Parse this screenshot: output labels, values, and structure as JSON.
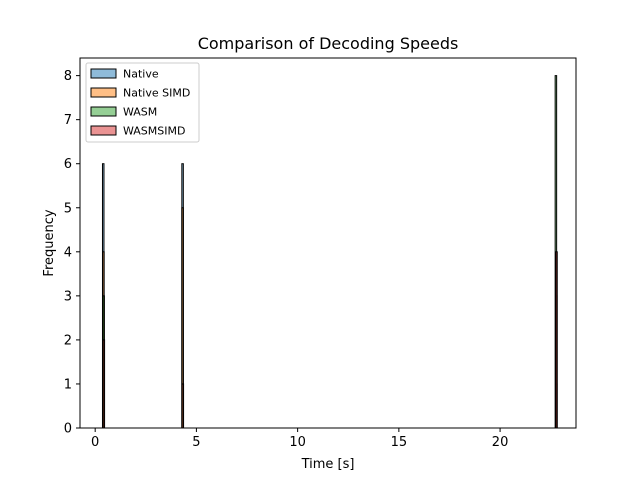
{
  "chart_data": {
    "type": "histogram",
    "title": "Comparison of Decoding Speeds",
    "xlabel": "Time [s]",
    "ylabel": "Frequency",
    "xlim": [
      -0.75,
      23.75
    ],
    "ylim": [
      0,
      8.4
    ],
    "xticks": [
      0,
      5,
      10,
      15,
      20
    ],
    "yticks": [
      0,
      1,
      2,
      3,
      4,
      5,
      6,
      7,
      8
    ],
    "legend": {
      "location": "top-left"
    },
    "series": [
      {
        "name": "Native",
        "color": "#1f77b4",
        "bins": [
          {
            "x0": 0.36,
            "x1": 0.4,
            "count": 6
          },
          {
            "x0": 4.28,
            "x1": 4.32,
            "count": 6
          },
          {
            "x0": 22.74,
            "x1": 22.78,
            "count": 1
          }
        ]
      },
      {
        "name": "Native SIMD",
        "color": "#ff7f0e",
        "bins": [
          {
            "x0": 0.37,
            "x1": 0.41,
            "count": 4
          },
          {
            "x0": 4.28,
            "x1": 4.32,
            "count": 5
          },
          {
            "x0": 22.74,
            "x1": 22.78,
            "count": 3
          }
        ]
      },
      {
        "name": "WASM",
        "color": "#2ca02c",
        "bins": [
          {
            "x0": 0.38,
            "x1": 0.42,
            "count": 3
          },
          {
            "x0": 4.29,
            "x1": 4.33,
            "count": 1
          },
          {
            "x0": 22.72,
            "x1": 22.76,
            "count": 8
          }
        ]
      },
      {
        "name": "WASMSIMD",
        "color": "#d62728",
        "bins": [
          {
            "x0": 0.39,
            "x1": 0.43,
            "count": 2
          },
          {
            "x0": 4.29,
            "x1": 4.33,
            "count": 1
          },
          {
            "x0": 22.75,
            "x1": 22.79,
            "count": 4
          }
        ]
      }
    ]
  }
}
